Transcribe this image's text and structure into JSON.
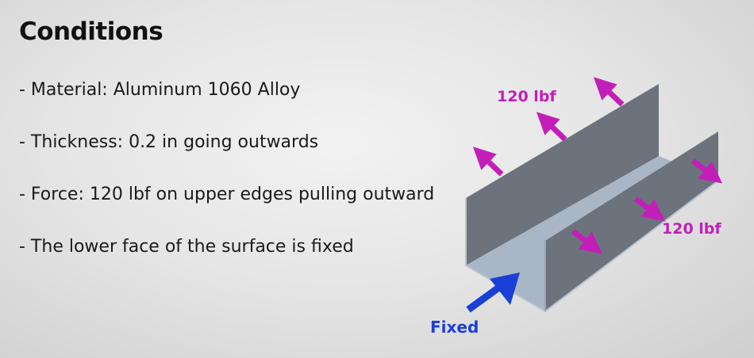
{
  "heading": "Conditions",
  "conditions": [
    "- Material: Aluminum 1060 Alloy",
    "- Thickness: 0.2 in going outwards",
    "- Force: 120 lbf on upper edges pulling outward",
    "- The lower face of the surface is fixed"
  ],
  "diagram": {
    "force_label_left": "120 lbf",
    "force_label_right": "120 lbf",
    "fixed_label": "Fixed",
    "colors": {
      "force": "#c31fb8",
      "fixed": "#1a3fd6",
      "wall_face": "#6c737d",
      "floor": "#a9b6c6",
      "edge": "#b9c3cf"
    }
  }
}
